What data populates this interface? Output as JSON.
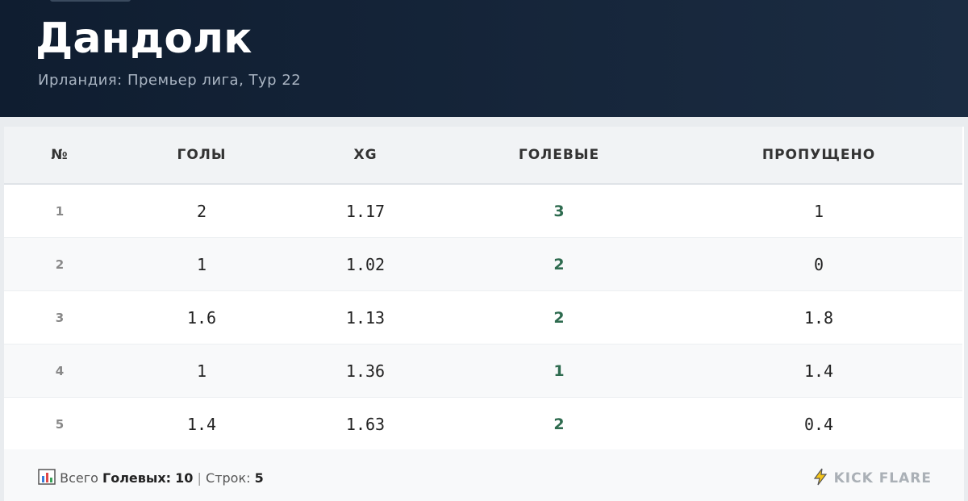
{
  "header": {
    "title": "Дандолк",
    "subtitle": "Ирландия: Премьер лига, Тур 22"
  },
  "table": {
    "columns": [
      "№",
      "ГОЛЫ",
      "XG",
      "ГОЛЕВЫЕ",
      "ПРОПУЩЕНО"
    ],
    "rows": [
      [
        1,
        2,
        1.17,
        3,
        1
      ],
      [
        2,
        1,
        1.02,
        2,
        0
      ],
      [
        3,
        1.6,
        1.13,
        2,
        1.8
      ],
      [
        4,
        1,
        1.36,
        1,
        1.4
      ],
      [
        5,
        1.4,
        1.63,
        2,
        0.4
      ]
    ]
  },
  "footer": {
    "total_label": "Всего",
    "total_key": "Голевых:",
    "total_value": 10,
    "separator": "|",
    "rows_label": "Строк:",
    "rows_value": 5,
    "brand": "KICK FLARE"
  }
}
